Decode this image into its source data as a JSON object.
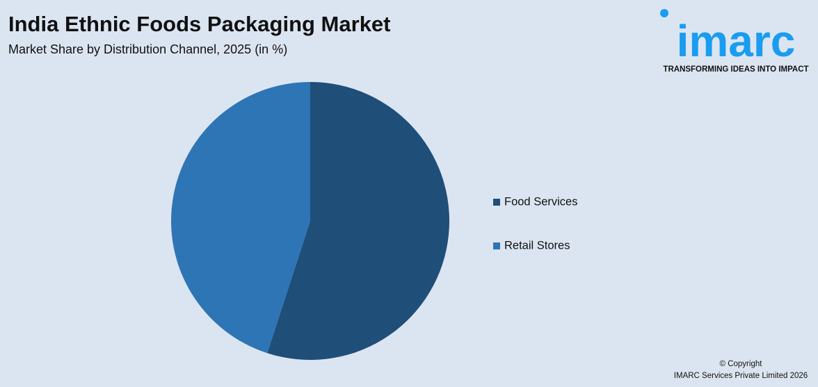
{
  "chart_data": {
    "type": "pie",
    "title": "India Ethnic Foods Packaging Market",
    "subtitle": "Market Share by Distribution Channel, 2025 (in %)",
    "categories": [
      "Food Services",
      "Retail Stores"
    ],
    "values": [
      55,
      45
    ],
    "colors": [
      "#1f4e79",
      "#2e75b6"
    ]
  },
  "brand": {
    "name": "imarc",
    "tagline": "TRANSFORMING IDEAS INTO IMPACT"
  },
  "footer": {
    "copyright": "© Copyright",
    "company": "IMARC Services Private Limited 2026"
  }
}
